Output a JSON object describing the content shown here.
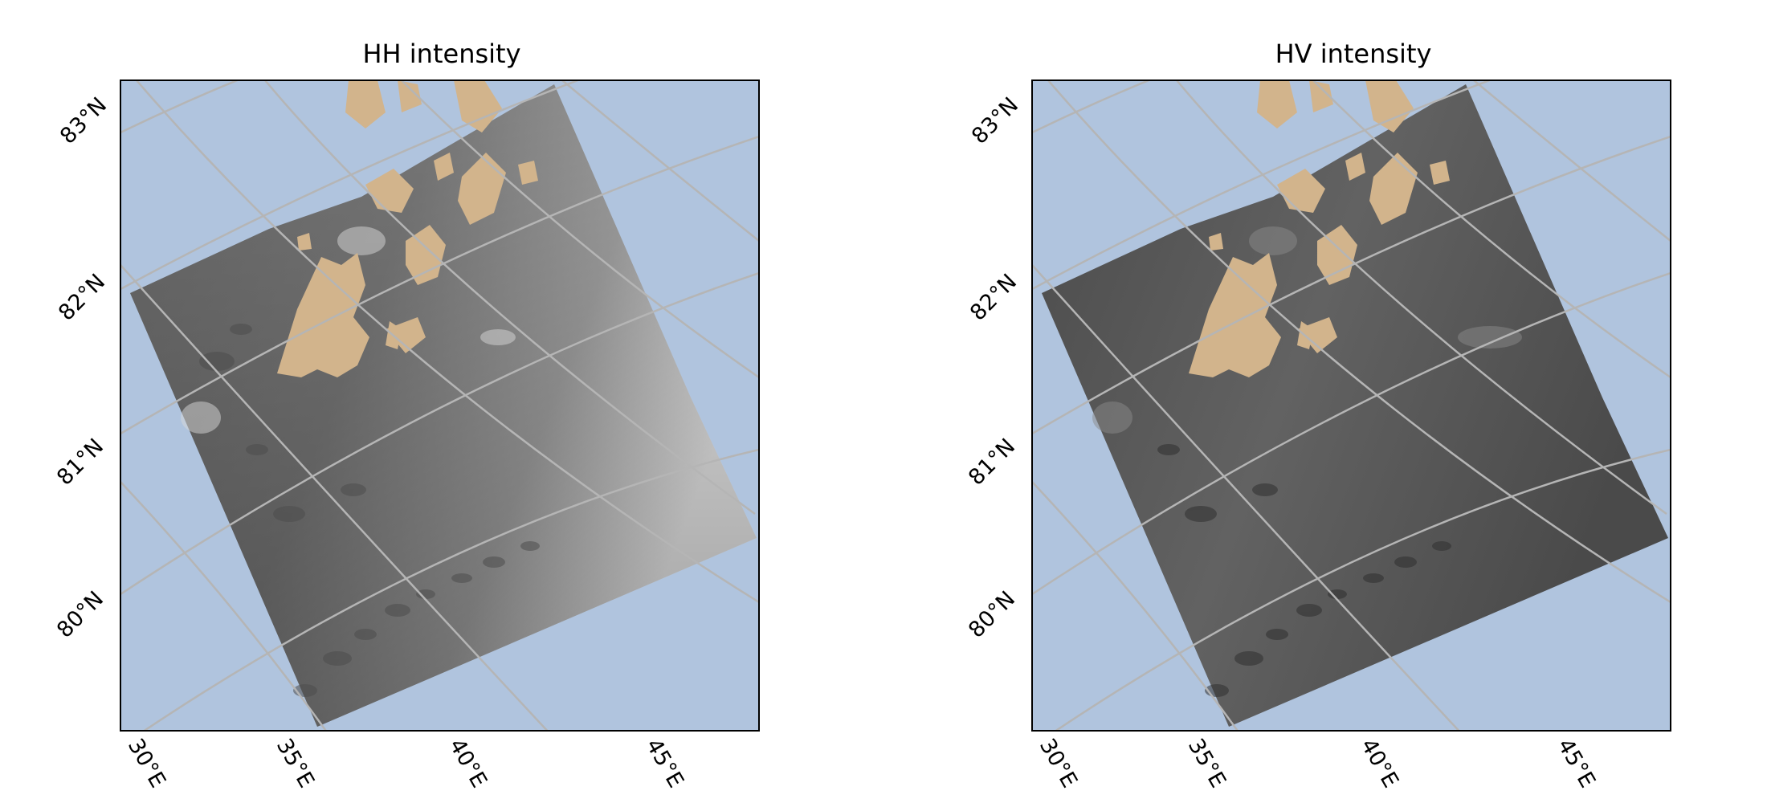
{
  "figure": {
    "panels": [
      {
        "id": "hh",
        "title": "HH intensity"
      },
      {
        "id": "hv",
        "title": "HV intensity"
      }
    ],
    "latitude_labels": [
      "83°N",
      "82°N",
      "81°N",
      "80°N"
    ],
    "longitude_labels": [
      "30°E",
      "35°E",
      "40°E",
      "45°E"
    ]
  },
  "colors": {
    "ocean": "#b0c4de",
    "land": "#d2b48c",
    "gridlines": "#b5b5b5",
    "frame": "#000000"
  },
  "layers": {
    "background": "ocean",
    "land": "land (Franz Josef Land)",
    "raster": "SAR intensity (grayscale)"
  }
}
